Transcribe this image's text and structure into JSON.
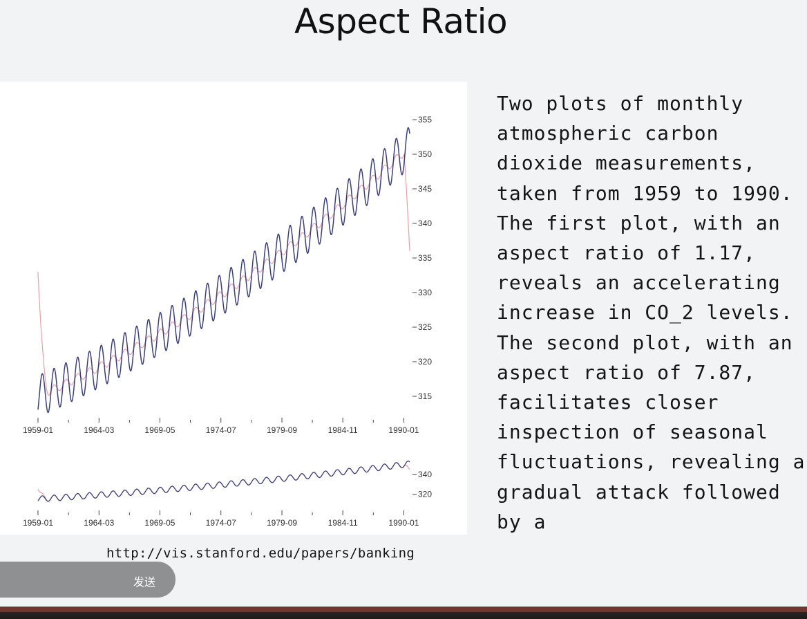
{
  "slide": {
    "title": "Aspect Ratio",
    "description": "Two plots of monthly atmospheric carbon dioxide measurements, taken from 1959 to 1990. The first plot, with an aspect ratio of 1.17, reveals an accelerating increase in CO_2 levels. The second plot, with an aspect ratio of 7.87, facilitates closer inspection of seasonal fluctuations, revealing a gradual attack followed by a",
    "source_url": "http://vis.stanford.edu/papers/banking"
  },
  "chat": {
    "send_label": "发送"
  },
  "colors": {
    "series_main": "#3a3f78",
    "series_trend": "#e6a0a8",
    "panel": "#ffffff"
  },
  "chart_data": [
    {
      "type": "line",
      "title": "",
      "xlabel": "",
      "ylabel": "",
      "x_ticks": [
        "1959-01",
        "1964-03",
        "1969-05",
        "1974-07",
        "1979-09",
        "1984-11",
        "1990-01"
      ],
      "x_tick_years": [
        1959.0,
        1964.17,
        1969.33,
        1974.5,
        1979.67,
        1984.83,
        1990.0
      ],
      "y_ticks": [
        315,
        320,
        325,
        330,
        335,
        340,
        345,
        350,
        355
      ],
      "xlim": [
        1959.0,
        1990.5
      ],
      "ylim": [
        312.5,
        357.5
      ],
      "y_axis_side": "right",
      "series": [
        {
          "start": 1959.0,
          "end": 1990.5,
          "base": 315.0,
          "slope": 0.75,
          "accel": 0.0125,
          "amplitude": 3.0
        },
        {
          "start": 1959.0,
          "end": 1990.5,
          "base": 315.0,
          "slope": 0.75,
          "accel": 0.0125,
          "amplitude": 0.6,
          "start_value": 333.0,
          "end_value": 336.0
        }
      ]
    },
    {
      "type": "line",
      "title": "",
      "xlabel": "",
      "ylabel": "",
      "x_ticks": [
        "1959-01",
        "1964-03",
        "1969-05",
        "1974-07",
        "1979-09",
        "1984-11",
        "1990-01"
      ],
      "x_tick_years": [
        1959.0,
        1964.17,
        1969.33,
        1974.5,
        1979.67,
        1984.83,
        1990.0
      ],
      "y_ticks": [
        320,
        340
      ],
      "xlim": [
        1959.0,
        1990.5
      ],
      "ylim": [
        309,
        360
      ],
      "y_axis_side": "right",
      "series": [
        {
          "start": 1959.0,
          "end": 1990.5,
          "base": 315.0,
          "slope": 0.75,
          "accel": 0.0125,
          "amplitude": 3.0
        },
        {
          "start": 1959.0,
          "end": 1990.5,
          "base": 315.0,
          "slope": 0.75,
          "accel": 0.0125,
          "amplitude": 3.0,
          "start_value": 325.0,
          "end_value": 345.0
        }
      ]
    }
  ]
}
